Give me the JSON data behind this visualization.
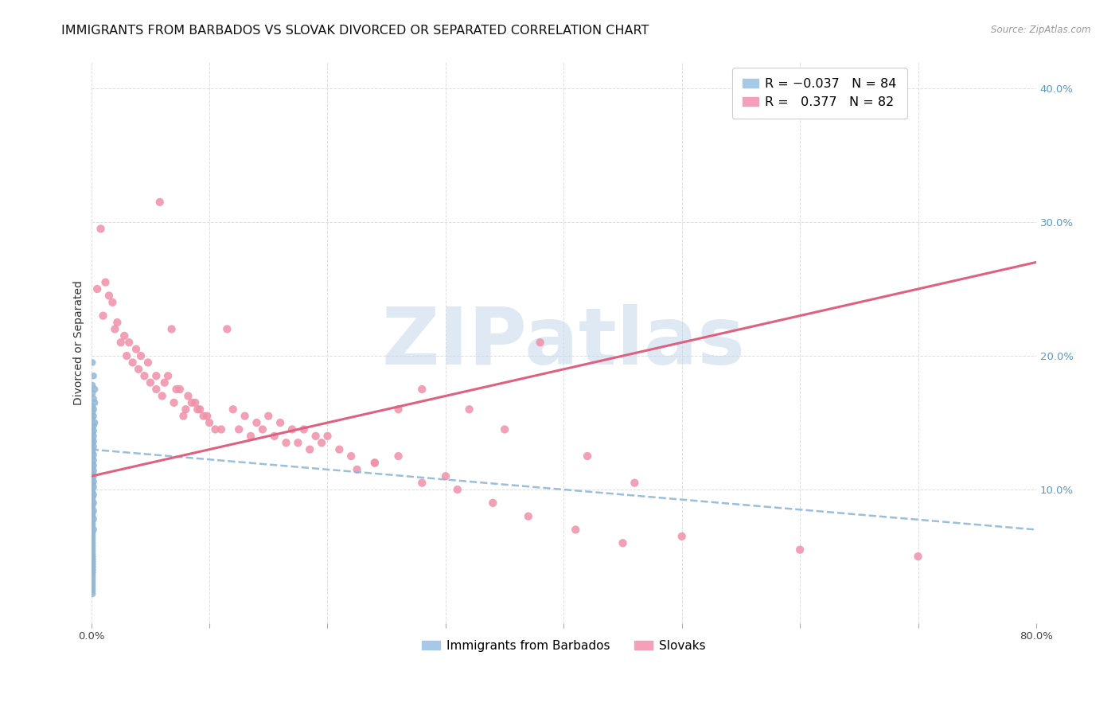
{
  "title": "IMMIGRANTS FROM BARBADOS VS SLOVAK DIVORCED OR SEPARATED CORRELATION CHART",
  "source": "Source: ZipAtlas.com",
  "ylabel": "Divorced or Separated",
  "watermark": "ZIPatlas",
  "legend_r_entries": [
    {
      "label": "R = -0.037   N = 84",
      "color": "#a8c8e8"
    },
    {
      "label": "R =  0.377   N = 82",
      "color": "#f4a0b8"
    }
  ],
  "legend_labels": [
    "Immigrants from Barbados",
    "Slovaks"
  ],
  "xlim": [
    0.0,
    0.8
  ],
  "ylim": [
    0.0,
    0.42
  ],
  "xticks": [
    0.0,
    0.1,
    0.2,
    0.3,
    0.4,
    0.5,
    0.6,
    0.7,
    0.8
  ],
  "yticks": [
    0.0,
    0.1,
    0.2,
    0.3,
    0.4
  ],
  "xticklabels": [
    "0.0%",
    "",
    "",
    "",
    "",
    "",
    "",
    "",
    "80.0%"
  ],
  "yticklabels_right": [
    "",
    "10.0%",
    "20.0%",
    "30.0%",
    "40.0%"
  ],
  "blue_scatter_x": [
    0.001,
    0.002,
    0.001,
    0.003,
    0.001,
    0.002,
    0.003,
    0.001,
    0.002,
    0.001,
    0.002,
    0.001,
    0.003,
    0.002,
    0.001,
    0.002,
    0.001,
    0.002,
    0.001,
    0.002,
    0.001,
    0.002,
    0.001,
    0.001,
    0.002,
    0.001,
    0.002,
    0.001,
    0.002,
    0.001,
    0.002,
    0.001,
    0.002,
    0.001,
    0.002,
    0.001,
    0.002,
    0.001,
    0.001,
    0.002,
    0.001,
    0.001,
    0.002,
    0.001,
    0.001,
    0.002,
    0.001,
    0.001,
    0.002,
    0.001,
    0.001,
    0.001,
    0.002,
    0.001,
    0.001,
    0.001,
    0.001,
    0.001,
    0.001,
    0.001,
    0.001,
    0.001,
    0.001,
    0.001,
    0.001,
    0.001,
    0.001,
    0.001,
    0.001,
    0.001,
    0.001,
    0.001,
    0.001,
    0.001,
    0.001,
    0.001,
    0.001,
    0.001,
    0.001,
    0.001,
    0.001,
    0.001,
    0.001,
    0.001
  ],
  "blue_scatter_y": [
    0.195,
    0.185,
    0.178,
    0.175,
    0.172,
    0.168,
    0.165,
    0.162,
    0.16,
    0.158,
    0.155,
    0.153,
    0.15,
    0.148,
    0.146,
    0.144,
    0.142,
    0.14,
    0.138,
    0.136,
    0.134,
    0.132,
    0.13,
    0.128,
    0.126,
    0.124,
    0.122,
    0.12,
    0.118,
    0.116,
    0.114,
    0.112,
    0.11,
    0.108,
    0.106,
    0.104,
    0.102,
    0.1,
    0.098,
    0.096,
    0.094,
    0.092,
    0.09,
    0.088,
    0.086,
    0.084,
    0.082,
    0.08,
    0.078,
    0.076,
    0.074,
    0.072,
    0.07,
    0.068,
    0.066,
    0.064,
    0.062,
    0.06,
    0.058,
    0.056,
    0.054,
    0.052,
    0.05,
    0.048,
    0.046,
    0.044,
    0.042,
    0.04,
    0.038,
    0.036,
    0.034,
    0.032,
    0.03,
    0.028,
    0.026,
    0.024,
    0.022,
    0.05,
    0.048,
    0.046,
    0.044,
    0.042,
    0.04,
    0.038
  ],
  "pink_scatter_x": [
    0.005,
    0.01,
    0.015,
    0.008,
    0.02,
    0.012,
    0.025,
    0.018,
    0.03,
    0.022,
    0.035,
    0.028,
    0.04,
    0.032,
    0.045,
    0.038,
    0.05,
    0.042,
    0.055,
    0.048,
    0.06,
    0.055,
    0.065,
    0.058,
    0.07,
    0.062,
    0.075,
    0.068,
    0.08,
    0.072,
    0.085,
    0.078,
    0.09,
    0.082,
    0.095,
    0.088,
    0.1,
    0.092,
    0.11,
    0.098,
    0.12,
    0.105,
    0.13,
    0.115,
    0.14,
    0.125,
    0.15,
    0.135,
    0.16,
    0.145,
    0.17,
    0.155,
    0.18,
    0.165,
    0.19,
    0.175,
    0.2,
    0.185,
    0.22,
    0.195,
    0.24,
    0.21,
    0.26,
    0.225,
    0.28,
    0.24,
    0.3,
    0.26,
    0.32,
    0.28,
    0.35,
    0.31,
    0.38,
    0.34,
    0.42,
    0.37,
    0.46,
    0.41,
    0.5,
    0.45,
    0.6,
    0.7
  ],
  "pink_scatter_y": [
    0.25,
    0.23,
    0.245,
    0.295,
    0.22,
    0.255,
    0.21,
    0.24,
    0.2,
    0.225,
    0.195,
    0.215,
    0.19,
    0.21,
    0.185,
    0.205,
    0.18,
    0.2,
    0.175,
    0.195,
    0.17,
    0.185,
    0.185,
    0.315,
    0.165,
    0.18,
    0.175,
    0.22,
    0.16,
    0.175,
    0.165,
    0.155,
    0.16,
    0.17,
    0.155,
    0.165,
    0.15,
    0.16,
    0.145,
    0.155,
    0.16,
    0.145,
    0.155,
    0.22,
    0.15,
    0.145,
    0.155,
    0.14,
    0.15,
    0.145,
    0.145,
    0.14,
    0.145,
    0.135,
    0.14,
    0.135,
    0.14,
    0.13,
    0.125,
    0.135,
    0.12,
    0.13,
    0.125,
    0.115,
    0.175,
    0.12,
    0.11,
    0.16,
    0.16,
    0.105,
    0.145,
    0.1,
    0.21,
    0.09,
    0.125,
    0.08,
    0.105,
    0.07,
    0.065,
    0.06,
    0.055,
    0.05
  ],
  "blue_line_x": [
    0.0,
    0.8
  ],
  "blue_line_y": [
    0.13,
    0.07
  ],
  "pink_line_x": [
    0.0,
    0.8
  ],
  "pink_line_y": [
    0.11,
    0.27
  ],
  "blue_color": "#90b8d8",
  "pink_color": "#f090a8",
  "blue_line_color": "#90b8d8",
  "pink_line_color": "#e06080",
  "grid_color": "#dddddd",
  "background_color": "#ffffff",
  "watermark_color": "#c5d8ec",
  "title_fontsize": 11.5,
  "axis_fontsize": 9,
  "tick_fontsize": 9.5
}
